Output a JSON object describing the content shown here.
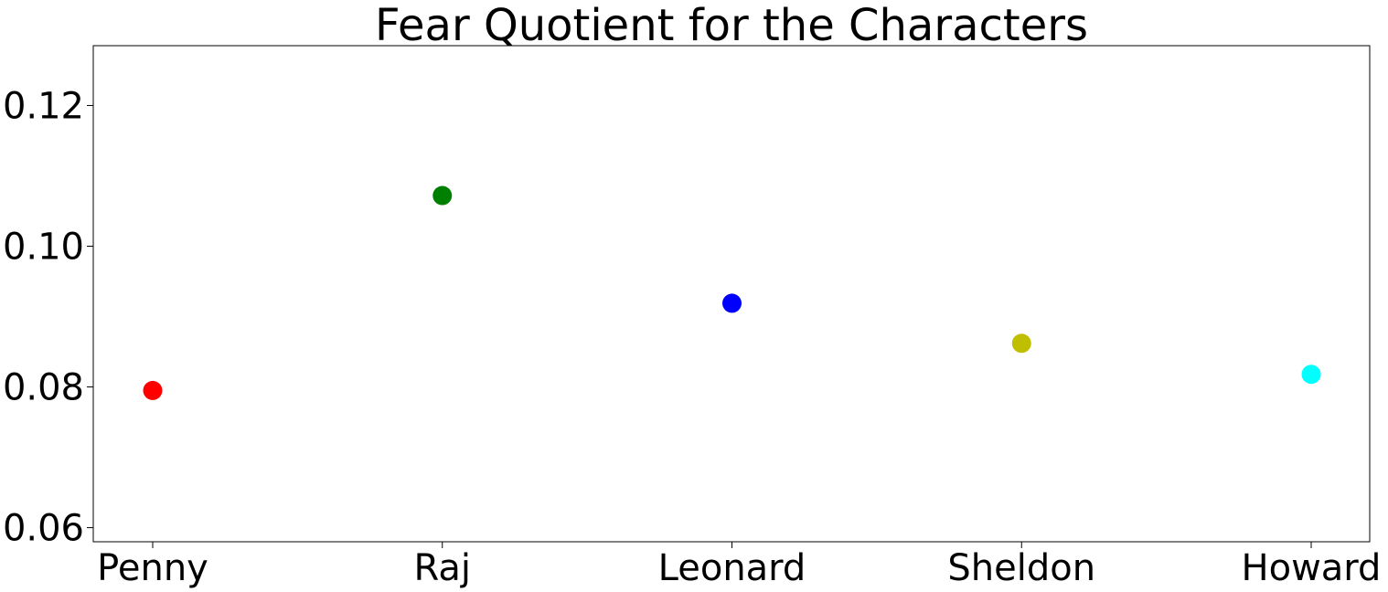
{
  "chart_data": {
    "type": "scatter",
    "title": "Fear Quotient for the Characters",
    "xlabel": "",
    "ylabel": "",
    "categories": [
      "Penny",
      "Raj",
      "Leonard",
      "Sheldon",
      "Howard"
    ],
    "values": [
      0.0795,
      0.1072,
      0.0919,
      0.0862,
      0.0818
    ],
    "point_colors": [
      "#ff0000",
      "#008000",
      "#0000ff",
      "#bfbf00",
      "#00ffff"
    ],
    "ylim": [
      0.058,
      0.1285
    ],
    "yticks": [
      0.06,
      0.08,
      0.1,
      0.12
    ],
    "ytick_labels": [
      "0.06",
      "0.08",
      "0.10",
      "0.12"
    ],
    "grid": false,
    "legend": "none"
  }
}
